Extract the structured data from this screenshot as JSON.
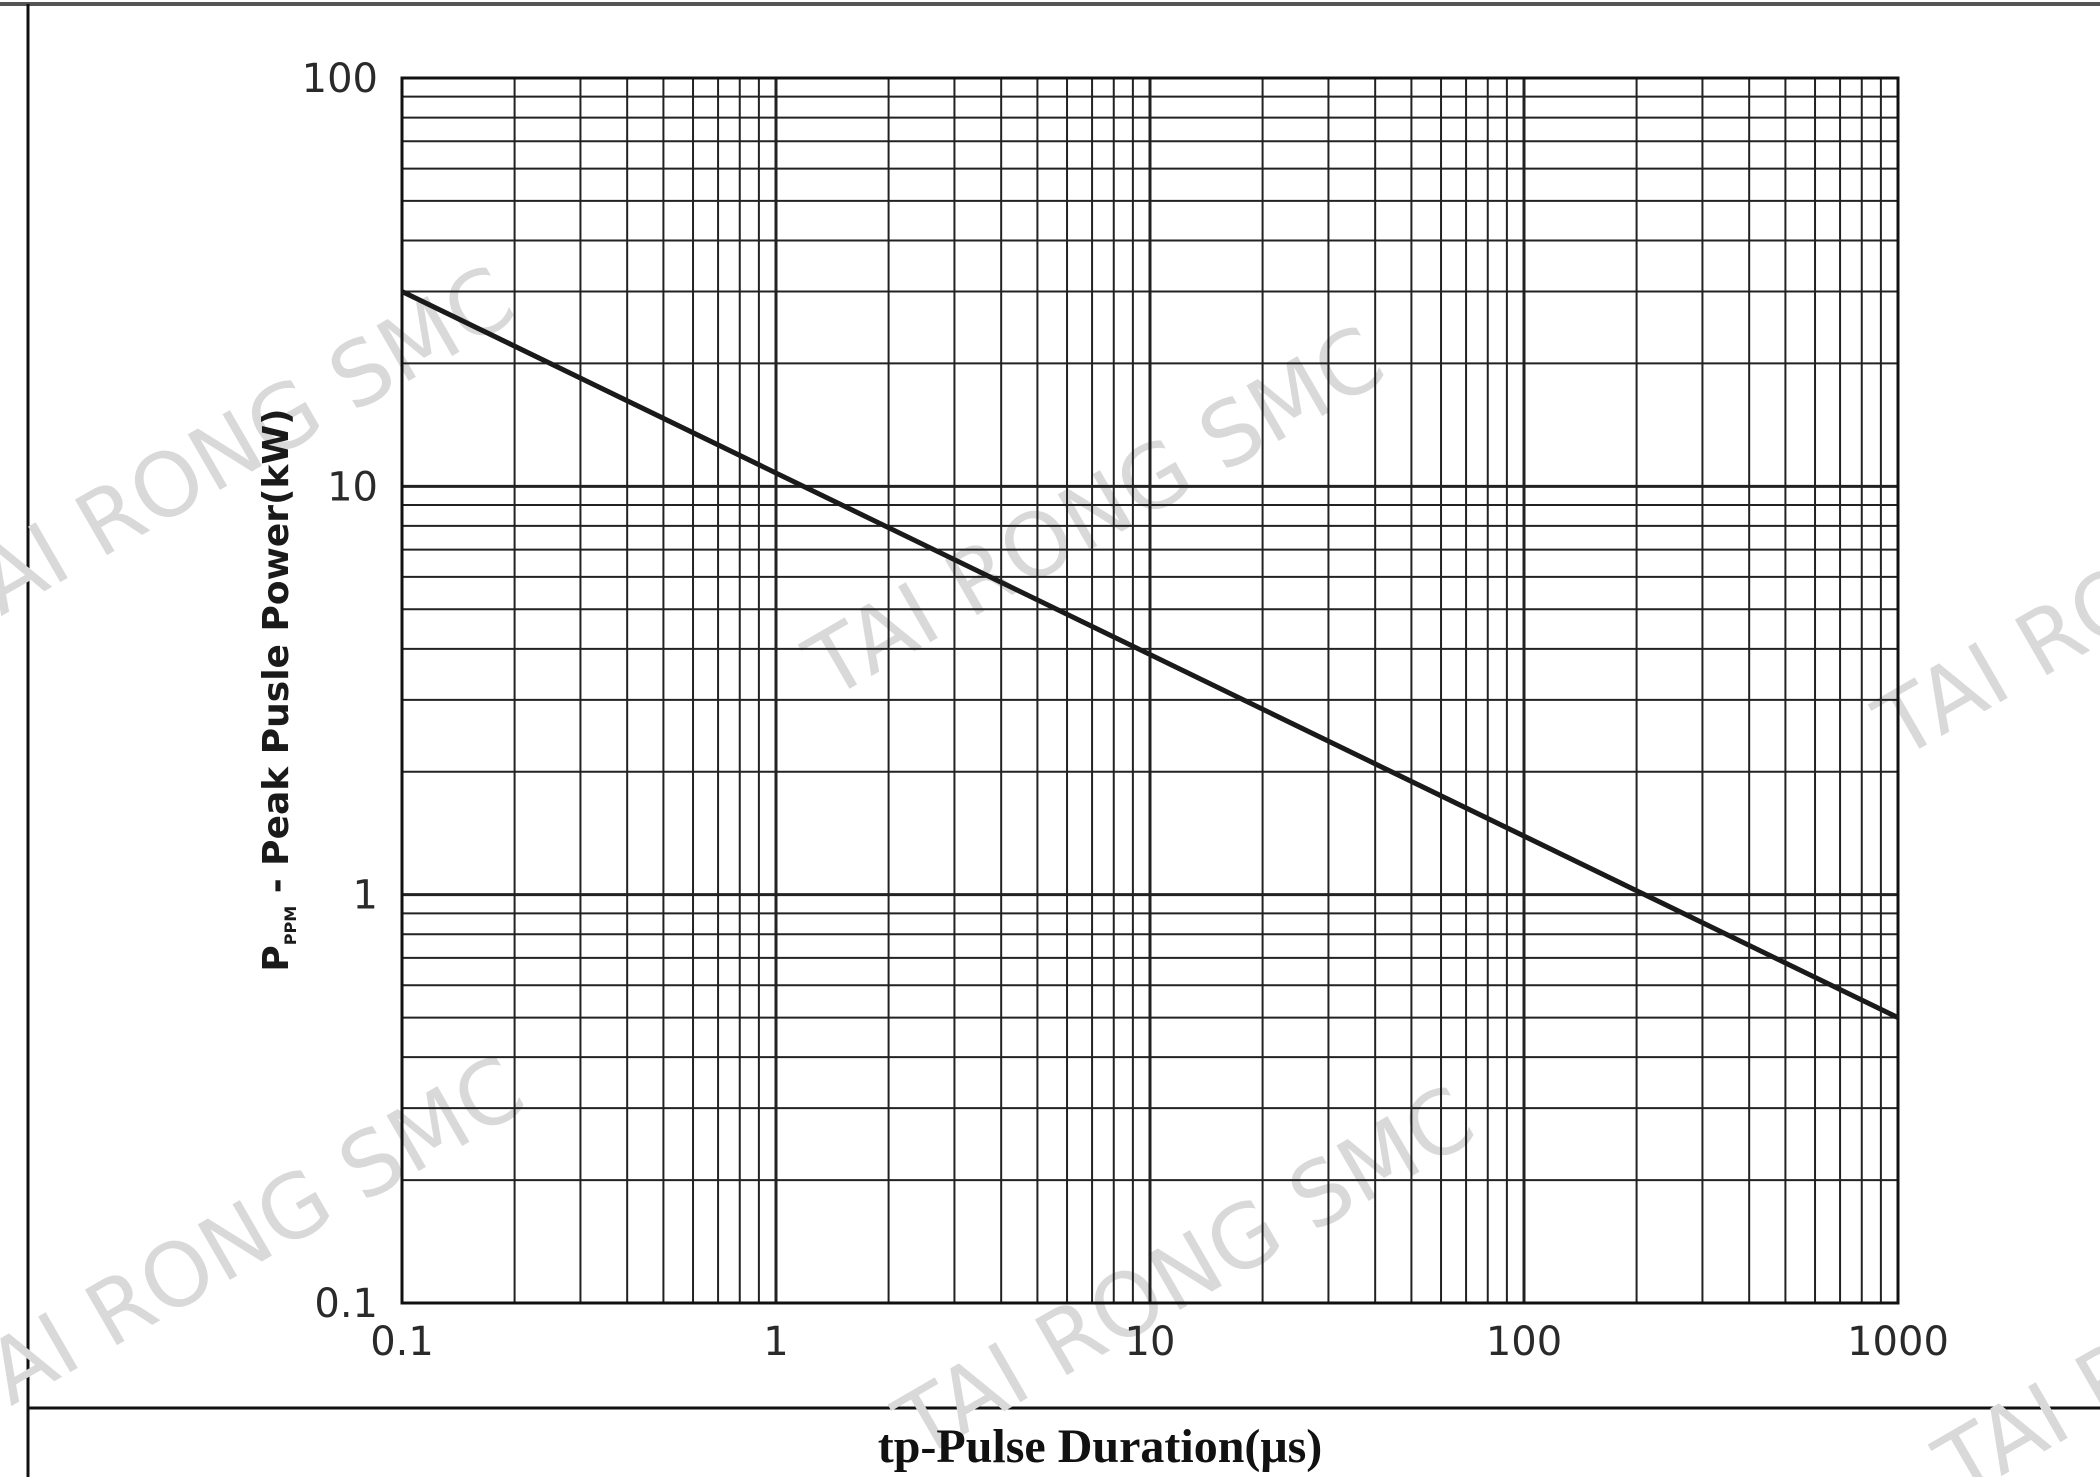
{
  "chart_data": {
    "type": "line",
    "x_scale": "log",
    "y_scale": "log",
    "xlim": [
      0.1,
      1000
    ],
    "ylim": [
      0.1,
      100
    ],
    "grid": true,
    "x_ticks": [
      "0.1",
      "1",
      "10",
      "100",
      "1000"
    ],
    "y_ticks": [
      "0.1",
      "1",
      "10",
      "100"
    ],
    "ylabel": {
      "main": "P",
      "subscript": "PPM",
      "rest": " - Peak Pusle Power(kW)"
    },
    "xlabel": "tp-Pulse Duration(μs)",
    "series": [
      {
        "x": [
          0.1,
          1000
        ],
        "y": [
          30,
          0.5
        ]
      }
    ],
    "line_color": "#1a1a1a",
    "watermark": "TAI RONG SMC"
  }
}
